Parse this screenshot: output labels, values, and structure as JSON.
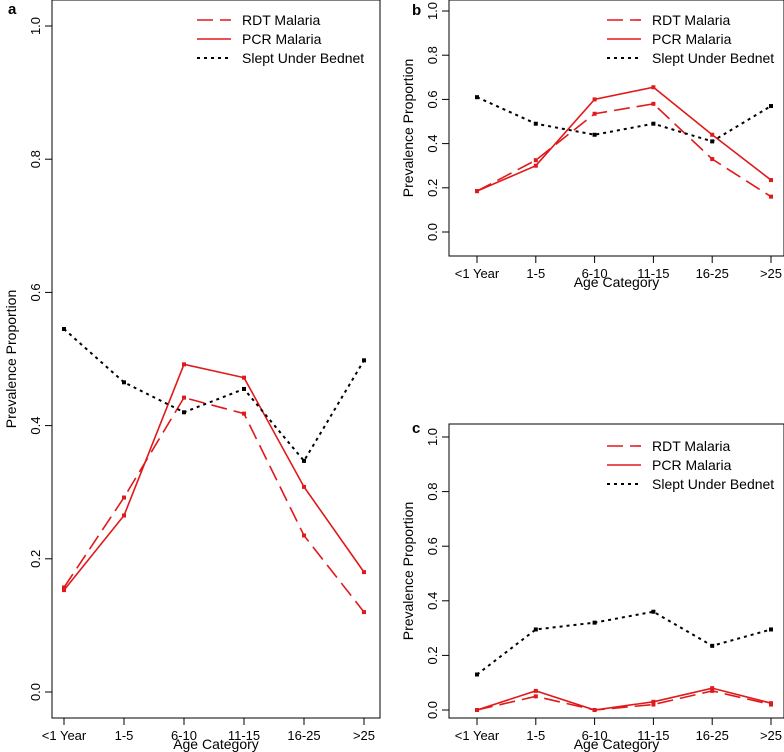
{
  "figure": {
    "panels": [
      {
        "id": "a",
        "label": "a"
      },
      {
        "id": "b",
        "label": "b"
      },
      {
        "id": "c",
        "label": "c"
      }
    ]
  },
  "colors": {
    "rdt": "#e0191b",
    "pcr": "#e0191b",
    "bednet": "#000000"
  },
  "chart_data": [
    {
      "panel": "a",
      "type": "line",
      "title": "",
      "xlabel": "Age Category",
      "ylabel": "Prevalence Proportion",
      "categories": [
        "<1 Year",
        "1-5",
        "6-10",
        "11-15",
        "16-25",
        ">25"
      ],
      "ylim": [
        0,
        1
      ],
      "yticks": [
        "0.0",
        "0.2",
        "0.4",
        "0.6",
        "0.8",
        "1.0"
      ],
      "legend_position": "top-right",
      "series": [
        {
          "name": "RDT Malaria",
          "style": "dashed",
          "values": [
            0.157,
            0.292,
            0.442,
            0.418,
            0.235,
            0.12
          ]
        },
        {
          "name": "PCR Malaria",
          "style": "solid",
          "values": [
            0.153,
            0.265,
            0.492,
            0.472,
            0.308,
            0.18
          ]
        },
        {
          "name": "Slept Under Bednet",
          "style": "dotted",
          "values": [
            0.545,
            0.465,
            0.42,
            0.455,
            0.347,
            0.498
          ]
        }
      ]
    },
    {
      "panel": "b",
      "type": "line",
      "title": "",
      "xlabel": "Age Category",
      "ylabel": "Prevalence Proportion",
      "categories": [
        "<1 Year",
        "1-5",
        "6-10",
        "11-15",
        "16-25",
        ">25"
      ],
      "ylim": [
        0,
        1
      ],
      "yticks": [
        "0.0",
        "0.2",
        "0.4",
        "0.6",
        "0.8",
        "1.0"
      ],
      "legend_position": "top-right",
      "series": [
        {
          "name": "RDT Malaria",
          "style": "dashed",
          "values": [
            0.185,
            0.325,
            0.535,
            0.58,
            0.33,
            0.16
          ]
        },
        {
          "name": "PCR Malaria",
          "style": "solid",
          "values": [
            0.185,
            0.3,
            0.6,
            0.655,
            0.44,
            0.235
          ]
        },
        {
          "name": "Slept Under Bednet",
          "style": "dotted",
          "values": [
            0.61,
            0.49,
            0.44,
            0.49,
            0.41,
            0.57
          ]
        }
      ]
    },
    {
      "panel": "c",
      "type": "line",
      "title": "",
      "xlabel": "Age Category",
      "ylabel": "Prevalence Proportion",
      "categories": [
        "<1 Year",
        "1-5",
        "6-10",
        "11-15",
        "16-25",
        ">25"
      ],
      "ylim": [
        0,
        1
      ],
      "yticks": [
        "0.0",
        "0.2",
        "0.4",
        "0.6",
        "0.8",
        "1.0"
      ],
      "legend_position": "top-right",
      "series": [
        {
          "name": "RDT Malaria",
          "style": "dashed",
          "values": [
            0.0,
            0.05,
            0.0,
            0.02,
            0.07,
            0.02
          ]
        },
        {
          "name": "PCR Malaria",
          "style": "solid",
          "values": [
            0.0,
            0.07,
            0.0,
            0.03,
            0.08,
            0.025
          ]
        },
        {
          "name": "Slept Under Bednet",
          "style": "dotted",
          "values": [
            0.13,
            0.295,
            0.32,
            0.36,
            0.235,
            0.295
          ]
        }
      ]
    }
  ]
}
